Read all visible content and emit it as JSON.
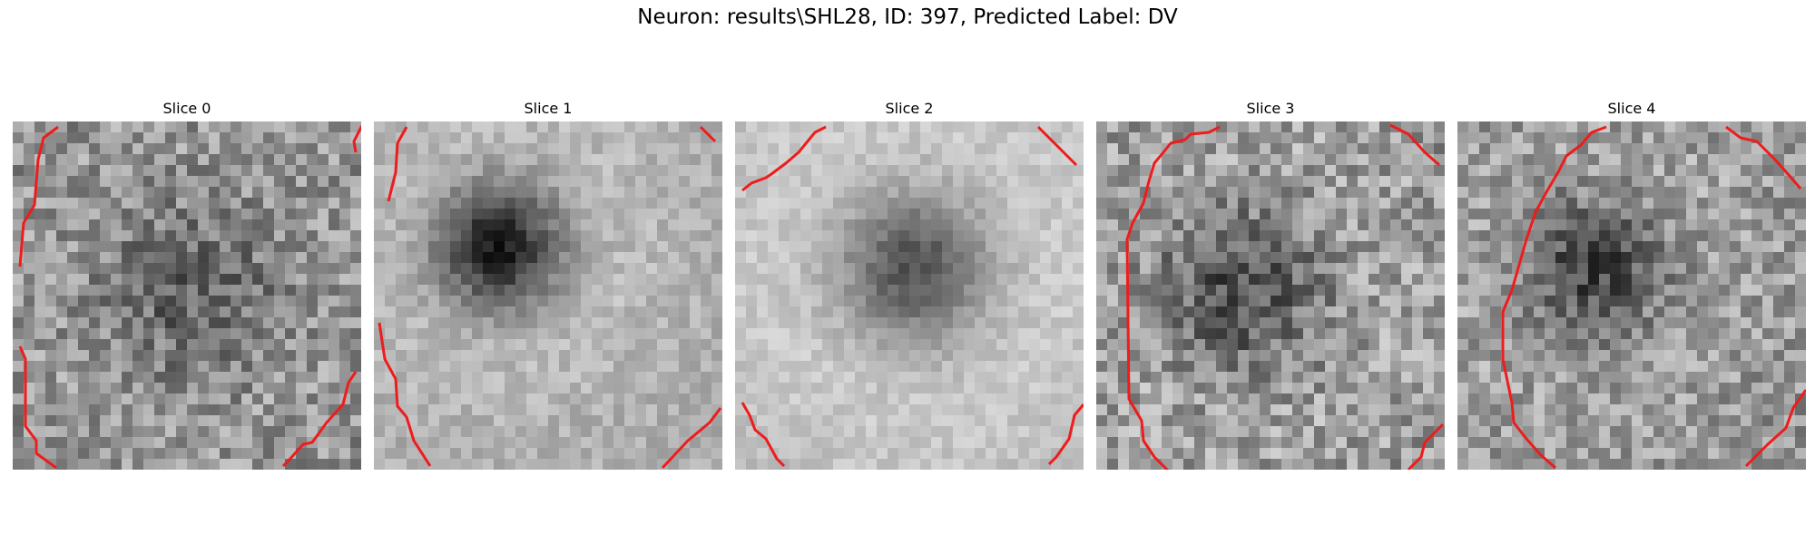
{
  "figure": {
    "title": "Neuron: results\\SHL28, ID: 397, Predicted Label: DV"
  },
  "slices": [
    {
      "title": "Slice 0"
    },
    {
      "title": "Slice 1"
    },
    {
      "title": "Slice 2"
    },
    {
      "title": "Slice 3"
    },
    {
      "title": "Slice 4"
    }
  ],
  "colors": {
    "contour": "#ee1c1c",
    "background": "#ffffff"
  }
}
